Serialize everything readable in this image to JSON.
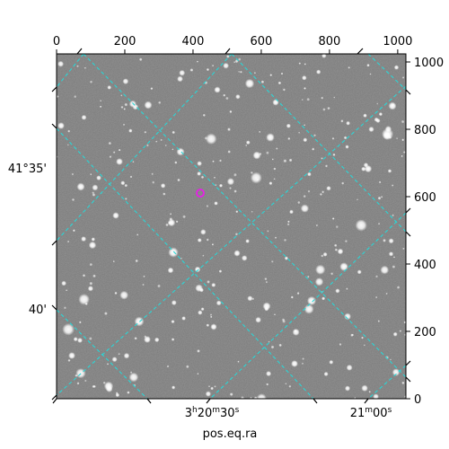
{
  "top_axis": {
    "ticks": [
      "0",
      "200",
      "400",
      "600",
      "800",
      "1000"
    ],
    "values": [
      0,
      200,
      400,
      600,
      800,
      1000
    ],
    "range": [
      0,
      1024
    ]
  },
  "right_axis": {
    "ticks": [
      "0",
      "200",
      "400",
      "600",
      "800",
      "1000"
    ],
    "values": [
      0,
      200,
      400,
      600,
      800,
      1000
    ],
    "range": [
      0,
      1024
    ]
  },
  "left_axis": {
    "tick_labels": [
      "41°35'",
      "40'"
    ]
  },
  "bottom_axis": {
    "tick_labels": [
      {
        "hms": [
          "3",
          "h",
          "20",
          "m",
          "30",
          "s"
        ]
      },
      {
        "hms": [
          "21",
          "m",
          "00",
          "s"
        ]
      }
    ],
    "title": "pos.eq.ra"
  },
  "image": {
    "background_color": "#7a7a7a",
    "grid_color": "#2ad6d6",
    "marker_color": "#e81ee8",
    "marker_pixel": [
      425,
      610
    ]
  }
}
